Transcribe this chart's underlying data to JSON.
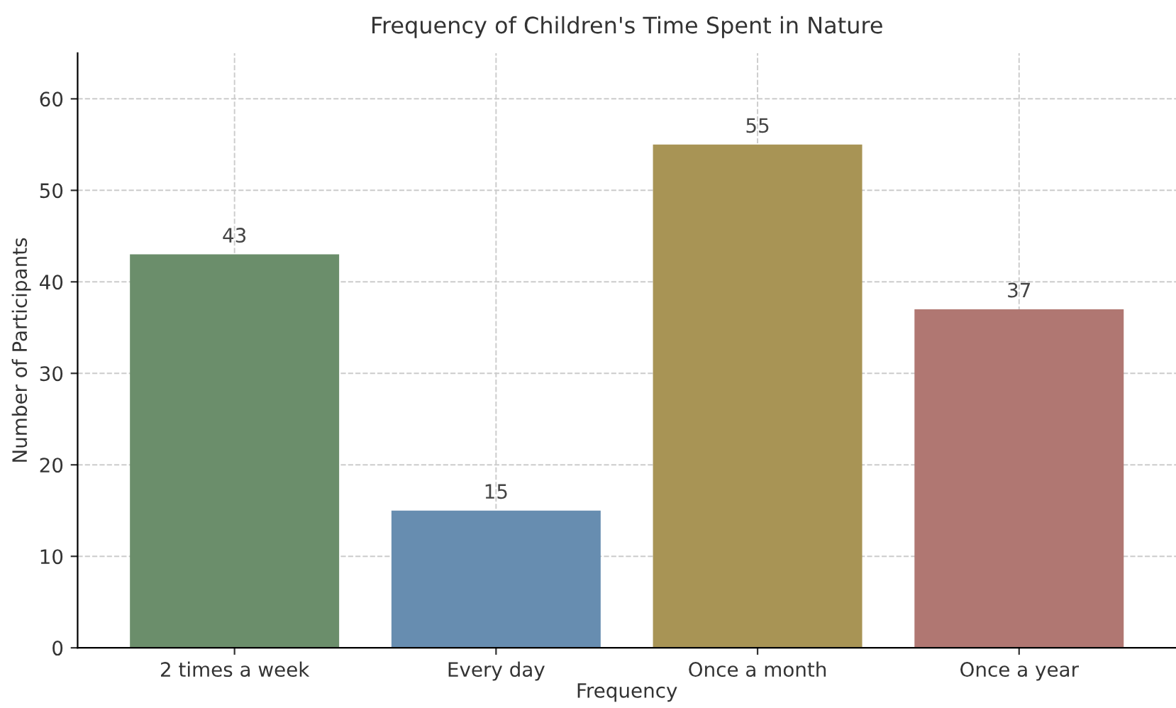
{
  "chart_data": {
    "type": "bar",
    "title": "Frequency of Children's Time Spent in Nature",
    "xlabel": "Frequency",
    "ylabel": "Number of Participants",
    "categories": [
      "2 times a week",
      "Every day",
      "Once a month",
      "Once a year"
    ],
    "values": [
      43,
      15,
      55,
      37
    ],
    "colors": [
      "#6b8e6b",
      "#678db0",
      "#a89455",
      "#b07772"
    ],
    "ylim": [
      0,
      65
    ],
    "yticks": [
      0,
      10,
      20,
      30,
      40,
      50,
      60
    ],
    "grid": true,
    "data_labels": true
  }
}
